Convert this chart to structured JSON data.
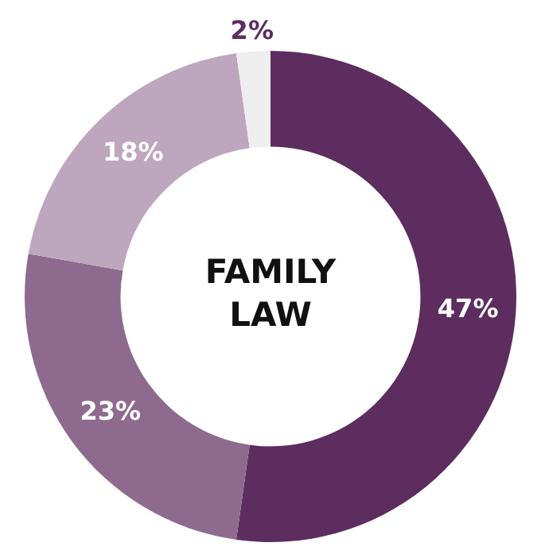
{
  "chart_data": {
    "type": "donut",
    "title": "FAMILY LAW",
    "categories": [
      null,
      null,
      null,
      null
    ],
    "values": [
      47,
      23,
      18,
      2
    ],
    "colors": [
      "#5c2d5e",
      "#8e6b8e",
      "#bfa6bf",
      "#eeeeee"
    ],
    "value_labels": [
      "47%",
      "23%",
      "18%",
      "2%"
    ],
    "legend": false
  }
}
